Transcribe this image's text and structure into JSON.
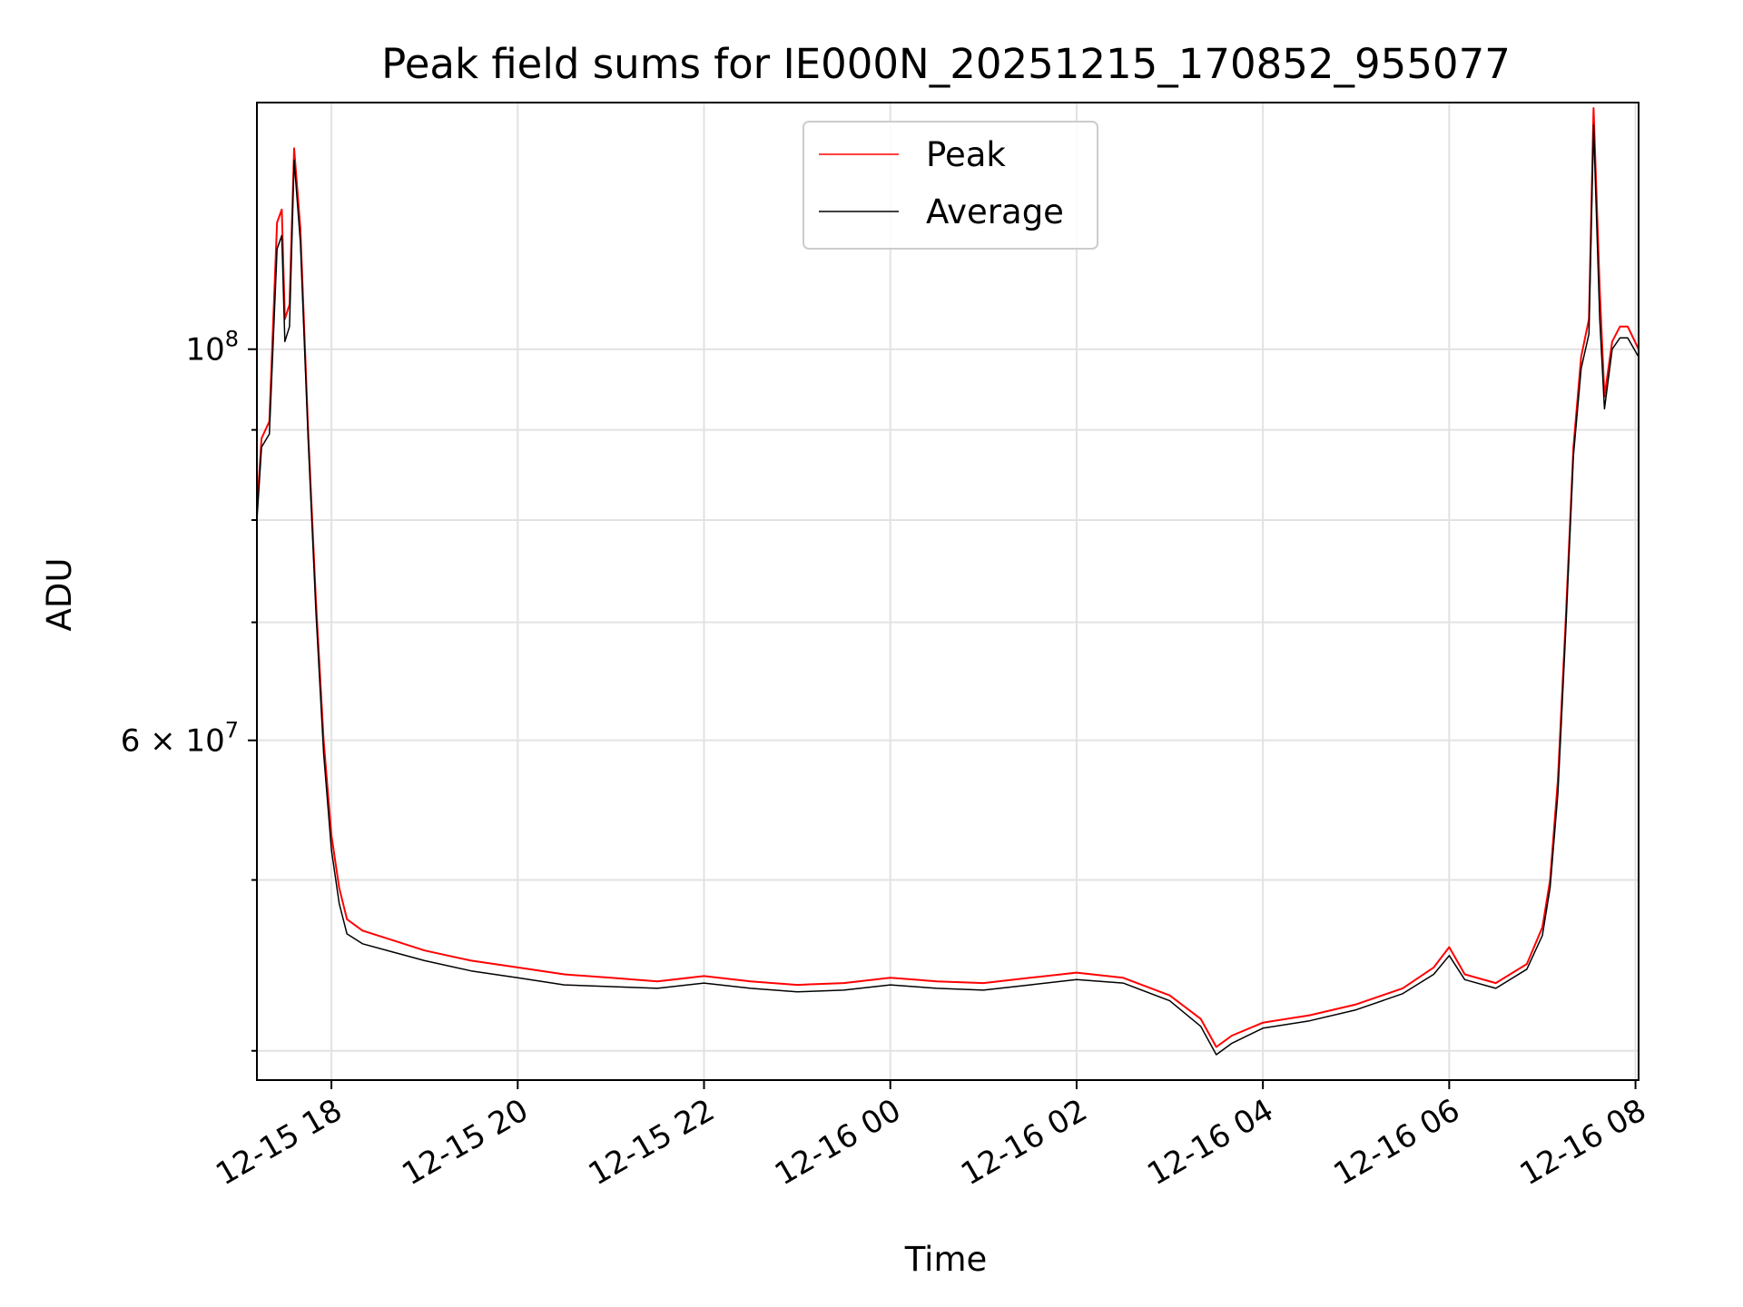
{
  "chart_data": {
    "type": "line",
    "title": "Peak field sums for IE000N_20251215_170852_955077",
    "xlabel": "Time",
    "ylabel": "ADU",
    "y_scale": "log",
    "ylim": [
      38500000,
      138000000
    ],
    "xlim": [
      "2025-12-15 17:12",
      "2025-12-16 08:02"
    ],
    "grid": true,
    "legend_placement": "upper center",
    "x_ticks": [
      "12-15 18",
      "12-15 20",
      "12-15 22",
      "12-16 00",
      "12-16 02",
      "12-16 04",
      "12-16 06",
      "12-16 08"
    ],
    "x_tick_times": [
      "2025-12-15 18:00",
      "2025-12-15 20:00",
      "2025-12-15 22:00",
      "2025-12-16 00:00",
      "2025-12-16 02:00",
      "2025-12-16 04:00",
      "2025-12-16 06:00",
      "2025-12-16 08:00"
    ],
    "y_major_ticks": [
      {
        "value": 100000000,
        "label_base": "10",
        "label_exp": "8"
      },
      {
        "value": 60000000,
        "label_base": "6 × 10",
        "label_exp": "7"
      }
    ],
    "y_minor_ticks": [
      40000000,
      50000000,
      70000000,
      80000000,
      90000000
    ],
    "series": [
      {
        "name": "Peak",
        "color": "#ff0000",
        "x": [
          "2025-12-15 17:12",
          "2025-12-15 17:15",
          "2025-12-15 17:20",
          "2025-12-15 17:25",
          "2025-12-15 17:28",
          "2025-12-15 17:30",
          "2025-12-15 17:33",
          "2025-12-15 17:36",
          "2025-12-15 17:40",
          "2025-12-15 17:45",
          "2025-12-15 17:50",
          "2025-12-15 17:55",
          "2025-12-15 18:00",
          "2025-12-15 18:05",
          "2025-12-15 18:10",
          "2025-12-15 18:20",
          "2025-12-15 18:40",
          "2025-12-15 19:00",
          "2025-12-15 19:30",
          "2025-12-15 20:00",
          "2025-12-15 20:30",
          "2025-12-15 21:00",
          "2025-12-15 21:30",
          "2025-12-15 22:00",
          "2025-12-15 22:30",
          "2025-12-15 23:00",
          "2025-12-15 23:30",
          "2025-12-16 00:00",
          "2025-12-16 00:30",
          "2025-12-16 01:00",
          "2025-12-16 01:30",
          "2025-12-16 02:00",
          "2025-12-16 02:30",
          "2025-12-16 03:00",
          "2025-12-16 03:20",
          "2025-12-16 03:30",
          "2025-12-16 03:40",
          "2025-12-16 04:00",
          "2025-12-16 04:30",
          "2025-12-16 05:00",
          "2025-12-16 05:30",
          "2025-12-16 05:50",
          "2025-12-16 06:00",
          "2025-12-16 06:10",
          "2025-12-16 06:30",
          "2025-12-16 06:50",
          "2025-12-16 07:00",
          "2025-12-16 07:05",
          "2025-12-16 07:10",
          "2025-12-16 07:15",
          "2025-12-16 07:20",
          "2025-12-16 07:25",
          "2025-12-16 07:30",
          "2025-12-16 07:33",
          "2025-12-16 07:37",
          "2025-12-16 07:40",
          "2025-12-16 07:45",
          "2025-12-16 07:50",
          "2025-12-16 07:55",
          "2025-12-16 08:02"
        ],
        "y": [
          81000000,
          89000000,
          91000000,
          118000000,
          120000000,
          104000000,
          106000000,
          130000000,
          117000000,
          90000000,
          72000000,
          60000000,
          53000000,
          49500000,
          47500000,
          46800000,
          46200000,
          45600000,
          45000000,
          44600000,
          44200000,
          44000000,
          43800000,
          44100000,
          43800000,
          43600000,
          43700000,
          44000000,
          43800000,
          43700000,
          44000000,
          44300000,
          44000000,
          43000000,
          41700000,
          40200000,
          40800000,
          41500000,
          41900000,
          42500000,
          43400000,
          44600000,
          45800000,
          44200000,
          43700000,
          44800000,
          47000000,
          50000000,
          57000000,
          70000000,
          88000000,
          99000000,
          104000000,
          137000000,
          108000000,
          94000000,
          101000000,
          103000000,
          103000000,
          100000000
        ]
      },
      {
        "name": "Average",
        "color": "#000000",
        "x": [
          "2025-12-15 17:12",
          "2025-12-15 17:15",
          "2025-12-15 17:20",
          "2025-12-15 17:25",
          "2025-12-15 17:28",
          "2025-12-15 17:30",
          "2025-12-15 17:33",
          "2025-12-15 17:36",
          "2025-12-15 17:40",
          "2025-12-15 17:45",
          "2025-12-15 17:50",
          "2025-12-15 17:55",
          "2025-12-15 18:00",
          "2025-12-15 18:05",
          "2025-12-15 18:10",
          "2025-12-15 18:20",
          "2025-12-15 18:40",
          "2025-12-15 19:00",
          "2025-12-15 19:30",
          "2025-12-15 20:00",
          "2025-12-15 20:30",
          "2025-12-15 21:00",
          "2025-12-15 21:30",
          "2025-12-15 22:00",
          "2025-12-15 22:30",
          "2025-12-15 23:00",
          "2025-12-15 23:30",
          "2025-12-16 00:00",
          "2025-12-16 00:30",
          "2025-12-16 01:00",
          "2025-12-16 01:30",
          "2025-12-16 02:00",
          "2025-12-16 02:30",
          "2025-12-16 03:00",
          "2025-12-16 03:20",
          "2025-12-16 03:30",
          "2025-12-16 03:40",
          "2025-12-16 04:00",
          "2025-12-16 04:30",
          "2025-12-16 05:00",
          "2025-12-16 05:30",
          "2025-12-16 05:50",
          "2025-12-16 06:00",
          "2025-12-16 06:10",
          "2025-12-16 06:30",
          "2025-12-16 06:50",
          "2025-12-16 07:00",
          "2025-12-16 07:05",
          "2025-12-16 07:10",
          "2025-12-16 07:15",
          "2025-12-16 07:20",
          "2025-12-16 07:25",
          "2025-12-16 07:30",
          "2025-12-16 07:33",
          "2025-12-16 07:37",
          "2025-12-16 07:40",
          "2025-12-16 07:45",
          "2025-12-16 07:50",
          "2025-12-16 07:55",
          "2025-12-16 08:02"
        ],
        "y": [
          80000000,
          88000000,
          89500000,
          114000000,
          116000000,
          101000000,
          103000000,
          128000000,
          115000000,
          89000000,
          71000000,
          59000000,
          52000000,
          48500000,
          46600000,
          46000000,
          45500000,
          45000000,
          44400000,
          44000000,
          43600000,
          43500000,
          43400000,
          43700000,
          43400000,
          43200000,
          43300000,
          43600000,
          43400000,
          43300000,
          43600000,
          43900000,
          43700000,
          42700000,
          41300000,
          39800000,
          40400000,
          41200000,
          41600000,
          42200000,
          43100000,
          44200000,
          45300000,
          43900000,
          43400000,
          44500000,
          46500000,
          49500000,
          56000000,
          69000000,
          87000000,
          97500000,
          102000000,
          134000000,
          104000000,
          92500000,
          100000000,
          101500000,
          101500000,
          99000000
        ]
      }
    ],
    "legend": [
      "Peak",
      "Average"
    ]
  }
}
